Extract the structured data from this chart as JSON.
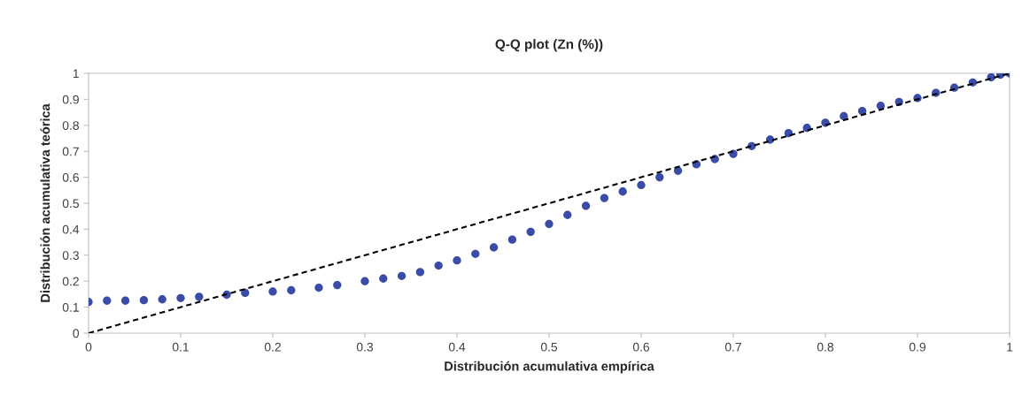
{
  "chart_data": {
    "type": "scatter",
    "title": "Q-Q plot (Zn (%))",
    "xlabel": "Distribución acumulativa empírica",
    "ylabel": "Distribución acumulativa teórica",
    "xlim": [
      0,
      1
    ],
    "ylim": [
      0,
      1
    ],
    "xticks": [
      0,
      0.1,
      0.2,
      0.3,
      0.4,
      0.5,
      0.6,
      0.7,
      0.8,
      0.9,
      1
    ],
    "yticks": [
      0,
      0.1,
      0.2,
      0.3,
      0.4,
      0.5,
      0.6,
      0.7,
      0.8,
      0.9,
      1
    ],
    "grid": false,
    "legend": false,
    "series": [
      {
        "color": "#3a4ca8",
        "marker": "circle",
        "x": [
          0,
          0.02,
          0.04,
          0.06,
          0.08,
          0.1,
          0.12,
          0.15,
          0.17,
          0.2,
          0.22,
          0.25,
          0.27,
          0.3,
          0.32,
          0.34,
          0.36,
          0.38,
          0.4,
          0.42,
          0.44,
          0.46,
          0.48,
          0.5,
          0.52,
          0.54,
          0.56,
          0.58,
          0.6,
          0.62,
          0.64,
          0.66,
          0.68,
          0.7,
          0.72,
          0.74,
          0.76,
          0.78,
          0.8,
          0.82,
          0.84,
          0.86,
          0.88,
          0.9,
          0.92,
          0.94,
          0.96,
          0.98,
          0.99,
          1.0
        ],
        "values": [
          0.12,
          0.125,
          0.125,
          0.127,
          0.13,
          0.135,
          0.14,
          0.148,
          0.155,
          0.16,
          0.165,
          0.175,
          0.185,
          0.2,
          0.21,
          0.22,
          0.235,
          0.26,
          0.28,
          0.305,
          0.33,
          0.36,
          0.39,
          0.42,
          0.455,
          0.49,
          0.52,
          0.545,
          0.57,
          0.6,
          0.625,
          0.65,
          0.67,
          0.69,
          0.72,
          0.745,
          0.77,
          0.79,
          0.81,
          0.835,
          0.855,
          0.875,
          0.89,
          0.905,
          0.925,
          0.945,
          0.965,
          0.985,
          0.995,
          1.0
        ]
      },
      {
        "type": "line",
        "color": "#000000",
        "line_style": "dashed",
        "marker": "none",
        "x": [
          0,
          1
        ],
        "values": [
          0,
          1
        ]
      }
    ]
  }
}
